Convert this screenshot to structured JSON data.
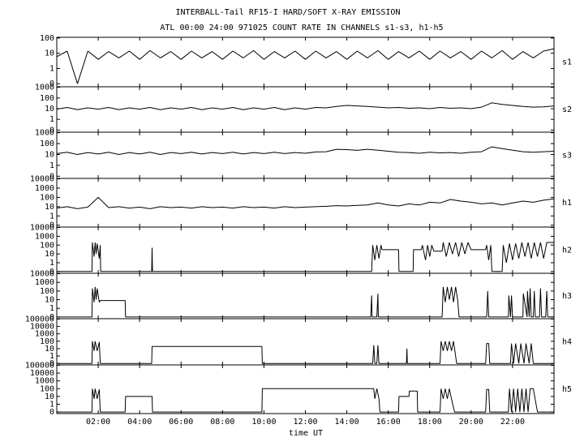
{
  "chart_data": {
    "type": "line",
    "title": "INTERBALL-Tail RF15-I HARD/SOFT X-RAY EMISSION",
    "subtitle": "ATL 00:00 24:00 971025  COUNT RATE IN CHANNELS s1-s3, h1-h5",
    "xlabel": "time UT",
    "xlim": [
      0,
      24
    ],
    "xticks": [
      {
        "value": 2,
        "label": "02:00"
      },
      {
        "value": 4,
        "label": "04:00"
      },
      {
        "value": 6,
        "label": "06:00"
      },
      {
        "value": 8,
        "label": "08:00"
      },
      {
        "value": 10,
        "label": "10:00"
      },
      {
        "value": 12,
        "label": "12:00"
      },
      {
        "value": 14,
        "label": "14:00"
      },
      {
        "value": 16,
        "label": "16:00"
      },
      {
        "value": 18,
        "label": "18:00"
      },
      {
        "value": 20,
        "label": "20:00"
      },
      {
        "value": 22,
        "label": "22:00"
      }
    ],
    "yscale": "log",
    "series": [
      {
        "name": "s1",
        "color": "#000000",
        "ylim": [
          0,
          100
        ],
        "yticks": [
          0,
          1,
          10,
          100
        ],
        "x": [
          0,
          0.5,
          1,
          1.5,
          2,
          2.5,
          3,
          3.5,
          4,
          4.5,
          5,
          5.5,
          6,
          6.5,
          7,
          7.5,
          8,
          8.5,
          9,
          9.5,
          10,
          10.5,
          11,
          11.5,
          12,
          12.5,
          13,
          13.5,
          14,
          14.5,
          15,
          15.5,
          16,
          16.5,
          17,
          17.5,
          18,
          18.5,
          19,
          19.5,
          20,
          20.5,
          21,
          21.5,
          22,
          22.5,
          23,
          23.5,
          24
        ],
        "values": [
          6,
          14,
          0,
          14,
          4,
          13,
          5,
          14,
          4,
          15,
          5,
          13,
          4,
          14,
          5,
          13,
          4,
          14,
          5,
          15,
          4,
          13,
          5,
          14,
          4,
          14,
          5,
          13,
          4,
          14,
          5,
          15,
          4,
          13,
          5,
          14,
          4,
          14,
          5,
          13,
          4,
          14,
          5,
          15,
          4,
          13,
          5,
          14,
          20
        ]
      },
      {
        "name": "s2",
        "color": "#000000",
        "ylim": [
          0,
          1000
        ],
        "yticks": [
          0,
          1,
          10,
          100,
          1000
        ],
        "x": [
          0,
          0.5,
          1,
          1.5,
          2,
          2.5,
          3,
          3.5,
          4,
          4.5,
          5,
          5.5,
          6,
          6.5,
          7,
          7.5,
          8,
          8.5,
          9,
          9.5,
          10,
          10.5,
          11,
          11.5,
          12,
          12.5,
          13,
          13.5,
          14,
          14.5,
          15,
          15.5,
          16,
          16.5,
          17,
          17.5,
          18,
          18.5,
          19,
          19.5,
          20,
          20.5,
          21,
          21.5,
          22,
          22.5,
          23,
          23.5,
          24
        ],
        "values": [
          9,
          13,
          8,
          12,
          9,
          13,
          8,
          12,
          9,
          13,
          8,
          12,
          9,
          13,
          8,
          12,
          9,
          13,
          8,
          12,
          9,
          13,
          8,
          12,
          9,
          13,
          12,
          16,
          20,
          18,
          16,
          14,
          12,
          13,
          11,
          12,
          10,
          13,
          11,
          12,
          10,
          14,
          35,
          25,
          20,
          16,
          14,
          15,
          18
        ]
      },
      {
        "name": "s3",
        "color": "#000000",
        "ylim": [
          0,
          1000
        ],
        "yticks": [
          0,
          1,
          10,
          100,
          1000
        ],
        "x": [
          0,
          0.5,
          1,
          1.5,
          2,
          2.5,
          3,
          3.5,
          4,
          4.5,
          5,
          5.5,
          6,
          6.5,
          7,
          7.5,
          8,
          8.5,
          9,
          9.5,
          10,
          10.5,
          11,
          11.5,
          12,
          12.5,
          13,
          13.5,
          14,
          14.5,
          15,
          15.5,
          16,
          16.5,
          17,
          17.5,
          18,
          18.5,
          19,
          19.5,
          20,
          20.5,
          21,
          21.5,
          22,
          22.5,
          23,
          23.5,
          24
        ],
        "values": [
          12,
          16,
          10,
          15,
          11,
          16,
          10,
          15,
          11,
          16,
          10,
          15,
          12,
          16,
          11,
          15,
          12,
          16,
          11,
          15,
          12,
          16,
          12,
          15,
          13,
          17,
          18,
          30,
          28,
          24,
          30,
          25,
          20,
          16,
          15,
          13,
          16,
          14,
          15,
          13,
          16,
          18,
          50,
          35,
          25,
          18,
          16,
          18,
          20
        ]
      },
      {
        "name": "h1",
        "color": "#000000",
        "ylim": [
          0,
          10000
        ],
        "yticks": [
          0,
          1,
          10,
          100,
          1000,
          10000
        ],
        "x": [
          0,
          0.5,
          1,
          1.5,
          2,
          2.5,
          3,
          3.5,
          4,
          4.5,
          5,
          5.5,
          6,
          6.5,
          7,
          7.5,
          8,
          8.5,
          9,
          9.5,
          10,
          10.5,
          11,
          11.5,
          12,
          12.5,
          13,
          13.5,
          14,
          14.5,
          15,
          15.5,
          16,
          16.5,
          17,
          17.5,
          18,
          18.5,
          19,
          19.5,
          20,
          20.5,
          21,
          21.5,
          22,
          22.5,
          23,
          23.5,
          24
        ],
        "values": [
          7,
          10,
          6,
          9,
          100,
          8,
          10,
          7,
          9,
          6,
          10,
          8,
          9,
          7,
          10,
          8,
          9,
          7,
          10,
          8,
          9,
          7,
          10,
          8,
          9,
          10,
          11,
          13,
          12,
          14,
          15,
          25,
          15,
          12,
          20,
          15,
          30,
          25,
          60,
          40,
          30,
          20,
          25,
          15,
          25,
          40,
          30,
          50,
          70
        ]
      },
      {
        "name": "h2",
        "color": "#000000",
        "ylim": [
          0,
          10000
        ],
        "yticks": [
          0,
          1,
          10,
          100,
          1000,
          10000
        ],
        "x": [
          0,
          1.7,
          1.72,
          1.8,
          1.85,
          1.9,
          1.95,
          2.05,
          2.1,
          2.12,
          4.58,
          4.6,
          4.62,
          15.2,
          15.25,
          15.35,
          15.45,
          15.55,
          15.65,
          15.7,
          16.5,
          16.52,
          17.2,
          17.22,
          17.6,
          17.65,
          17.8,
          17.9,
          18.0,
          18.1,
          18.2,
          18.6,
          18.65,
          18.8,
          18.95,
          19.1,
          19.25,
          19.4,
          19.55,
          19.7,
          19.85,
          20.0,
          20.7,
          20.75,
          20.85,
          20.95,
          21.0,
          21.5,
          21.55,
          21.7,
          21.85,
          22.0,
          22.15,
          22.3,
          22.45,
          22.6,
          22.75,
          22.9,
          23.05,
          23.2,
          23.35,
          23.5,
          23.65,
          24
        ],
        "values": [
          0,
          0,
          200,
          5,
          200,
          10,
          150,
          3,
          100,
          0,
          0,
          50,
          0,
          0,
          100,
          2,
          100,
          3,
          100,
          30,
          30,
          0,
          0,
          30,
          30,
          100,
          2,
          100,
          5,
          100,
          20,
          20,
          200,
          5,
          200,
          10,
          200,
          5,
          200,
          10,
          200,
          30,
          30,
          100,
          2,
          100,
          0,
          0,
          100,
          1,
          150,
          2,
          150,
          3,
          200,
          5,
          200,
          3,
          200,
          5,
          200,
          3,
          200,
          200
        ]
      },
      {
        "name": "h3",
        "color": "#000000",
        "ylim": [
          0,
          10000
        ],
        "yticks": [
          0,
          1,
          10,
          100,
          1000,
          10000
        ],
        "x": [
          0,
          1.7,
          1.72,
          1.8,
          1.85,
          1.9,
          1.95,
          2.05,
          2.1,
          3.3,
          3.32,
          15.15,
          15.2,
          15.22,
          15.45,
          15.5,
          15.52,
          18.6,
          18.65,
          18.75,
          18.85,
          18.95,
          19.05,
          19.15,
          19.25,
          19.35,
          19.42,
          20.75,
          20.8,
          20.85,
          21.8,
          21.82,
          21.9,
          21.95,
          22.0,
          22.5,
          22.52,
          22.7,
          22.72,
          22.8,
          22.85,
          22.9,
          23.0,
          23.05,
          23.1,
          23.3,
          23.35,
          23.4,
          23.6,
          23.65,
          23.7,
          24
        ],
        "values": [
          0,
          0,
          200,
          5,
          300,
          10,
          200,
          5,
          8,
          8,
          0,
          0,
          30,
          0,
          0,
          50,
          0,
          0,
          300,
          5,
          300,
          10,
          300,
          5,
          300,
          10,
          0,
          0,
          100,
          0,
          0,
          30,
          0,
          30,
          0,
          0,
          50,
          0,
          100,
          0,
          200,
          0,
          0,
          100,
          0,
          0,
          200,
          0,
          0,
          100,
          0,
          0
        ]
      },
      {
        "name": "h4",
        "color": "#000000",
        "ylim": [
          0,
          100000
        ],
        "yticks": [
          0,
          1,
          10,
          100,
          1000,
          10000,
          100000
        ],
        "x": [
          0,
          1.7,
          1.72,
          1.8,
          1.85,
          1.95,
          2.05,
          2.1,
          4.58,
          4.6,
          9.9,
          9.92,
          15.25,
          15.3,
          15.35,
          15.45,
          15.5,
          15.55,
          16.88,
          16.9,
          16.92,
          18.5,
          18.55,
          18.65,
          18.75,
          18.85,
          18.95,
          19.05,
          19.15,
          19.3,
          20.7,
          20.75,
          20.85,
          20.9,
          21.9,
          21.95,
          22.05,
          22.15,
          22.3,
          22.4,
          22.55,
          22.65,
          22.8,
          22.9,
          23.0,
          24
        ],
        "values": [
          0,
          0,
          100,
          5,
          100,
          5,
          80,
          0,
          0,
          20,
          20,
          0,
          0,
          30,
          0,
          0,
          30,
          0,
          0,
          10,
          0,
          0,
          100,
          5,
          100,
          5,
          100,
          5,
          100,
          0,
          0,
          50,
          50,
          0,
          0,
          50,
          0,
          50,
          0,
          50,
          0,
          50,
          0,
          50,
          0,
          0
        ]
      },
      {
        "name": "h5",
        "color": "#000000",
        "ylim": [
          0,
          100000
        ],
        "yticks": [
          0,
          1,
          10,
          100,
          1000,
          10000,
          100000
        ],
        "x": [
          0,
          1.7,
          1.72,
          1.8,
          1.85,
          1.95,
          2.05,
          2.1,
          3.3,
          3.32,
          4.6,
          4.62,
          9.9,
          9.92,
          15.3,
          15.35,
          15.45,
          15.55,
          15.6,
          16.5,
          16.52,
          17.0,
          17.02,
          17.4,
          17.42,
          18.5,
          18.55,
          18.65,
          18.75,
          18.85,
          18.95,
          19.05,
          19.2,
          20.7,
          20.75,
          20.85,
          20.9,
          21.8,
          21.85,
          21.95,
          22.05,
          22.15,
          22.25,
          22.35,
          22.45,
          22.55,
          22.65,
          22.75,
          22.85,
          23.0,
          23.2,
          24
        ],
        "values": [
          0,
          0,
          100,
          5,
          100,
          5,
          80,
          0,
          0,
          10,
          10,
          0,
          0,
          100,
          100,
          5,
          100,
          5,
          0,
          0,
          10,
          10,
          50,
          50,
          0,
          0,
          100,
          5,
          100,
          5,
          100,
          5,
          0,
          0,
          80,
          80,
          0,
          0,
          100,
          0,
          100,
          0,
          100,
          0,
          100,
          0,
          100,
          0,
          100,
          100,
          0,
          0
        ]
      }
    ]
  }
}
